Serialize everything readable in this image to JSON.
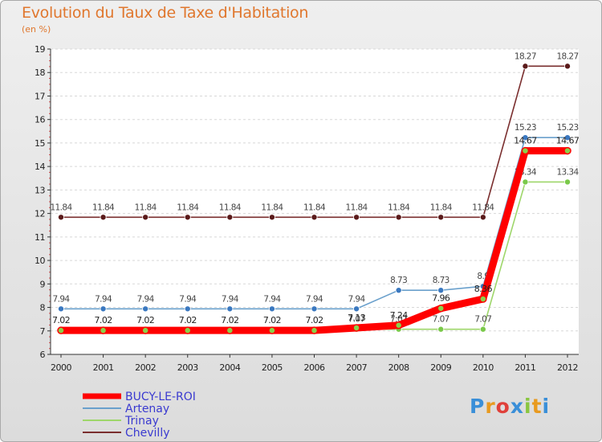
{
  "chart_data": {
    "type": "line",
    "title": "Evolution du Taux de Taxe d'Habitation",
    "subtitle": "(en %)",
    "xlabel": "",
    "ylabel": "",
    "ylim": [
      6,
      19
    ],
    "y_ticks": [
      6,
      7,
      8,
      9,
      10,
      11,
      12,
      13,
      14,
      15,
      16,
      17,
      18,
      19
    ],
    "categories": [
      "2000",
      "2001",
      "2002",
      "2003",
      "2004",
      "2005",
      "2006",
      "2007",
      "2008",
      "2009",
      "2010",
      "2011",
      "2012"
    ],
    "grid": true,
    "legend_position": "bottom-left",
    "series": [
      {
        "name": "Chevilly",
        "color": "#7a2e2e",
        "marker_color": "#5a1a1a",
        "values": [
          11.84,
          11.84,
          11.84,
          11.84,
          11.84,
          11.84,
          11.84,
          11.84,
          11.84,
          11.84,
          11.84,
          18.27,
          18.27
        ],
        "labels": [
          "11.84",
          "11.84",
          "11.84",
          "11.84",
          "11.84",
          "11.84",
          "11.84",
          "11.84",
          "11.84",
          "11.84",
          "11.84",
          "18.27",
          "18.27"
        ]
      },
      {
        "name": "Artenay",
        "color": "#6aa0cc",
        "marker_color": "#3a78c0",
        "values": [
          7.94,
          7.94,
          7.94,
          7.94,
          7.94,
          7.94,
          7.94,
          7.94,
          8.73,
          8.73,
          8.9,
          15.23,
          15.23
        ],
        "labels": [
          "7.94",
          "7.94",
          "7.94",
          "7.94",
          "7.94",
          "7.94",
          "7.94",
          "7.94",
          "8.73",
          "8.73",
          "8.9",
          "15.23",
          "15.23"
        ]
      },
      {
        "name": "Trinay",
        "color": "#9ed66a",
        "marker_color": "#7ac94a",
        "values": [
          7.07,
          7.07,
          7.07,
          7.07,
          7.07,
          7.07,
          7.07,
          7.07,
          7.07,
          7.07,
          7.07,
          13.34,
          13.34
        ],
        "labels": [
          "",
          "",
          "",
          "",
          "",
          "",
          "",
          "7.07",
          "7.07",
          "7.07",
          "7.07",
          "13.34",
          "13.34"
        ]
      },
      {
        "name": "BUCY-LE-ROI",
        "color": "#ff0000",
        "marker_color": "#ff0000",
        "values": [
          7.02,
          7.02,
          7.02,
          7.02,
          7.02,
          7.02,
          7.02,
          7.13,
          7.24,
          7.96,
          8.36,
          14.67,
          14.67
        ],
        "labels": [
          "7.02",
          "7.02",
          "7.02",
          "7.02",
          "7.02",
          "7.02",
          "7.02",
          "7.13",
          "7.24",
          "7.96",
          "8.36",
          "14.67",
          "14.67"
        ]
      }
    ],
    "legend": [
      "BUCY-LE-ROI",
      "Artenay",
      "Trinay",
      "Chevilly"
    ]
  },
  "branding": {
    "logo_letters": [
      "P",
      "r",
      "o",
      "x",
      "i",
      "t",
      "i"
    ],
    "logo_colors": [
      "#3a8fd8",
      "#e89a20",
      "#e0403a",
      "#3a8fd8",
      "#8ac640",
      "#e89a20",
      "#3a8fd8"
    ]
  }
}
